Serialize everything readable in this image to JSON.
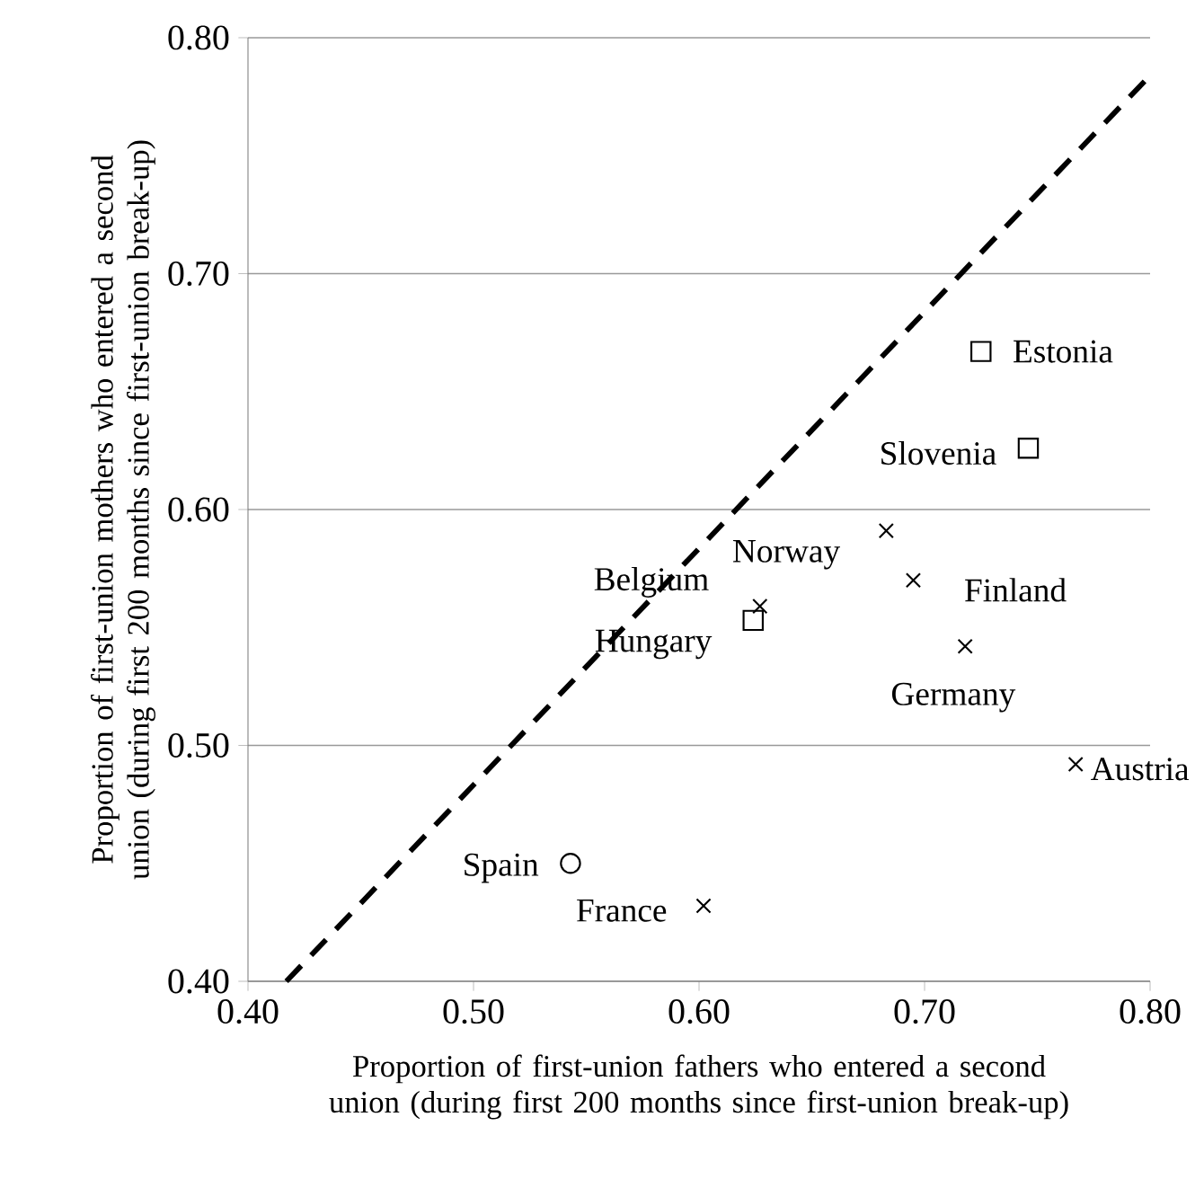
{
  "chart_data": {
    "type": "scatter",
    "xlabel": "Proportion of first-union fathers who entered a second union (during first 200 months since first-union break-up)",
    "ylabel": "Proportion of first-union mothers who entered a second union (during first 200 months since first-union break-up)",
    "xlim": [
      0.4,
      0.8
    ],
    "ylim": [
      0.4,
      0.8
    ],
    "xticks": [
      {
        "value": 0.4,
        "label": "0.40"
      },
      {
        "value": 0.5,
        "label": "0.50"
      },
      {
        "value": 0.6,
        "label": "0.60"
      },
      {
        "value": 0.7,
        "label": "0.70"
      },
      {
        "value": 0.8,
        "label": "0.80"
      }
    ],
    "yticks": [
      {
        "value": 0.4,
        "label": "0.40"
      },
      {
        "value": 0.5,
        "label": "0.50"
      },
      {
        "value": 0.6,
        "label": "0.60"
      },
      {
        "value": 0.7,
        "label": "0.70"
      },
      {
        "value": 0.8,
        "label": "0.80"
      }
    ],
    "grid": "y",
    "series": [
      {
        "color": "#000000",
        "marker": "square",
        "x": [
          0.725,
          0.746,
          0.624
        ],
        "values": [
          0.667,
          0.626,
          0.553
        ]
      },
      {
        "color": "#000000",
        "marker": "cross",
        "x": [
          0.683,
          0.695,
          0.627,
          0.718,
          0.767,
          0.602
        ],
        "values": [
          0.591,
          0.57,
          0.559,
          0.542,
          0.492,
          0.432
        ]
      },
      {
        "color": "#000000",
        "marker": "circle",
        "x": [
          0.543
        ],
        "values": [
          0.45
        ]
      },
      {
        "type": "line",
        "color": "#000000",
        "line_style": "dashed",
        "marker": "none",
        "x": [
          0.417,
          0.8
        ],
        "values": [
          0.4,
          0.784
        ]
      }
    ],
    "annotations": [
      {
        "text": "Estonia",
        "x": 0.725,
        "y": 0.667
      },
      {
        "text": "Slovenia",
        "x": 0.746,
        "y": 0.626
      },
      {
        "text": "Norway",
        "x": 0.683,
        "y": 0.591
      },
      {
        "text": "Finland",
        "x": 0.695,
        "y": 0.57
      },
      {
        "text": "Belgium",
        "x": 0.627,
        "y": 0.559
      },
      {
        "text": "Hungary",
        "x": 0.624,
        "y": 0.553
      },
      {
        "text": "Germany",
        "x": 0.718,
        "y": 0.542
      },
      {
        "text": "Austria",
        "x": 0.767,
        "y": 0.492
      },
      {
        "text": "Spain",
        "x": 0.543,
        "y": 0.45
      },
      {
        "text": "France",
        "x": 0.602,
        "y": 0.432
      }
    ]
  }
}
